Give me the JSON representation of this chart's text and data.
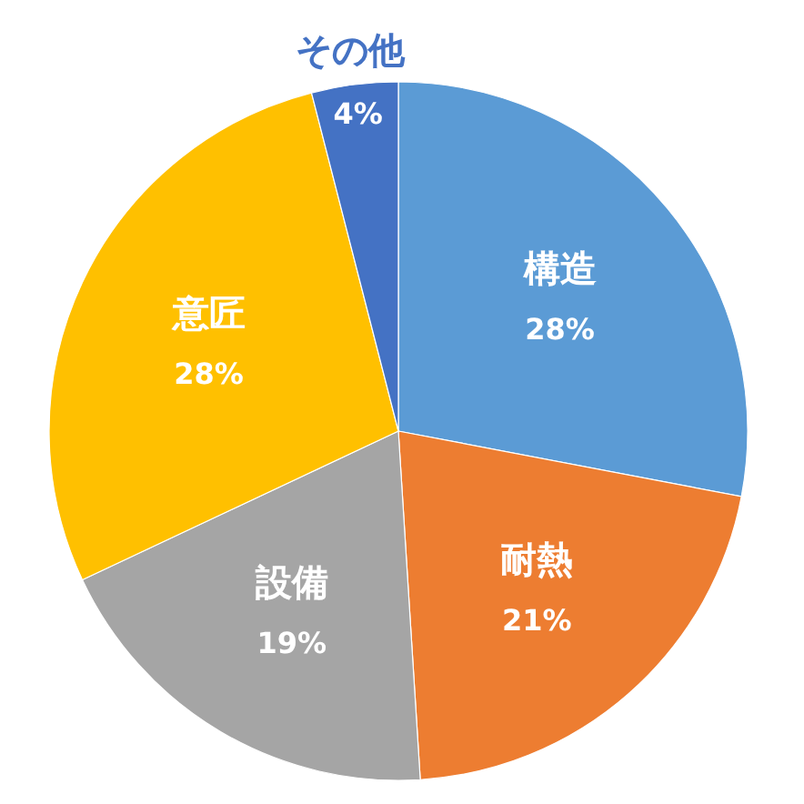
{
  "chart_data": {
    "type": "pie",
    "categories": [
      "構造",
      "耐熱",
      "設備",
      "意匠",
      "その他"
    ],
    "values": [
      28,
      21,
      19,
      28,
      4
    ],
    "value_labels": [
      "28%",
      "21%",
      "19%",
      "28%",
      "4%"
    ],
    "colors": [
      "#5b9bd5",
      "#ed7d31",
      "#a5a5a5",
      "#ffc000",
      "#4472c4"
    ]
  }
}
